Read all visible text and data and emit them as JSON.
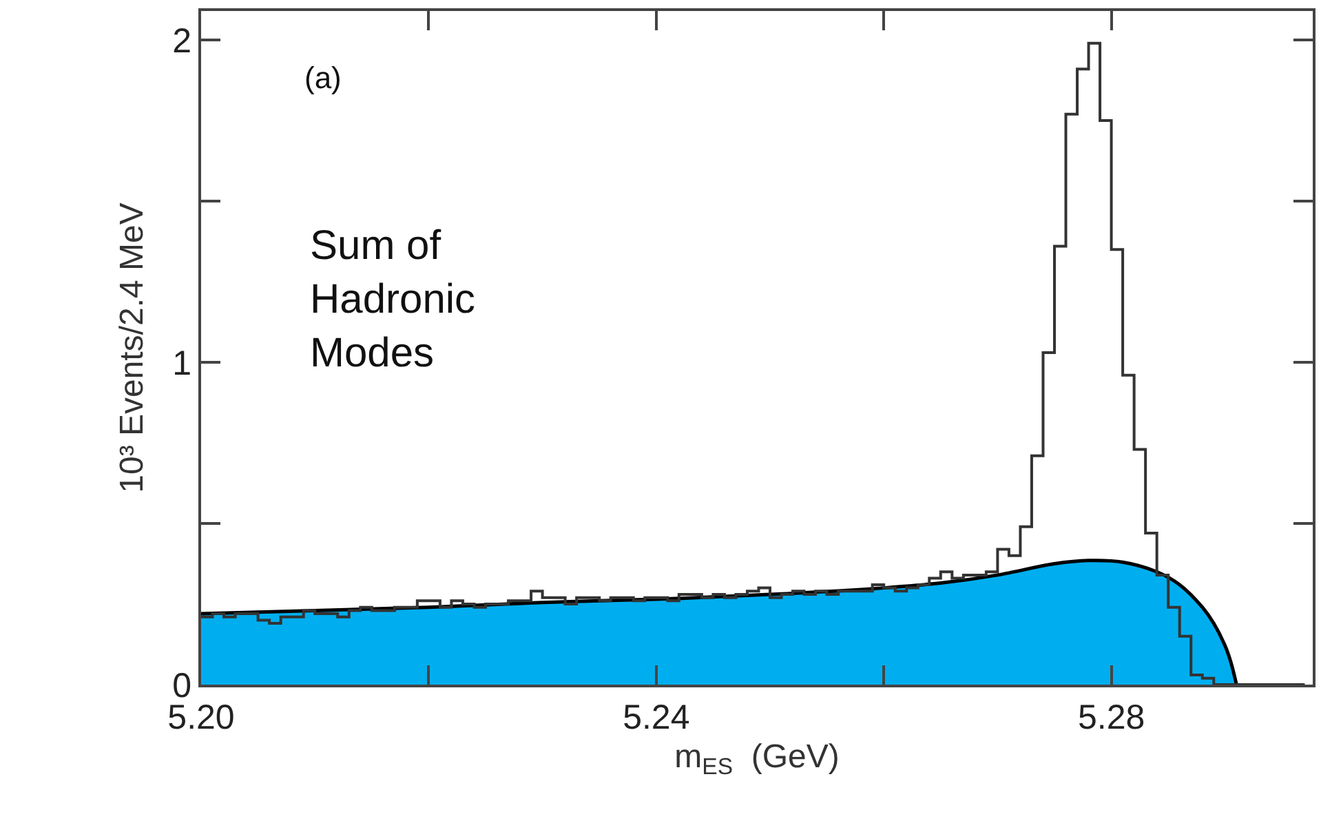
{
  "chart_data": {
    "type": "histogram",
    "xlabel": "m$_{ES}$  (GeV)",
    "ylabel": "10³ Events/2.4 MeV",
    "annotations": [
      "(a)",
      "Sum of\nHadronic\nModes"
    ],
    "xlim": [
      5.2,
      5.2977
    ],
    "xticks": [
      {
        "value": 5.2,
        "label": "5.20"
      },
      {
        "value": 5.22,
        "label": null
      },
      {
        "value": 5.24,
        "label": "5.24"
      },
      {
        "value": 5.26,
        "label": null
      },
      {
        "value": 5.28,
        "label": "5.28"
      }
    ],
    "ylim": [
      0,
      2.09
    ],
    "yticks": [
      0,
      {
        "value": 0.5,
        "label": null
      },
      1,
      {
        "value": 1.5,
        "label": null
      },
      2
    ],
    "series": [
      {
        "type": "area",
        "color": "#00aeef",
        "x": [
          5.2,
          5.21,
          5.22,
          5.23,
          5.24,
          5.25,
          5.26,
          5.265,
          5.27,
          5.275,
          5.278,
          5.281,
          5.284,
          5.286,
          5.288,
          5.289,
          5.29,
          5.2905,
          5.291
        ],
        "values": [
          0.22,
          0.23,
          0.24,
          0.255,
          0.265,
          0.28,
          0.3,
          0.315,
          0.34,
          0.375,
          0.385,
          0.38,
          0.35,
          0.31,
          0.24,
          0.19,
          0.12,
          0.07,
          0.0
        ]
      },
      {
        "color": "#333333",
        "bins": [
          5.2,
          5.201,
          5.202,
          5.203,
          5.204,
          5.205,
          5.206,
          5.207,
          5.208,
          5.209,
          5.21,
          5.211,
          5.212,
          5.213,
          5.214,
          5.215,
          5.216,
          5.217,
          5.218,
          5.219,
          5.22,
          5.221,
          5.222,
          5.223,
          5.224,
          5.225,
          5.226,
          5.227,
          5.228,
          5.229,
          5.23,
          5.231,
          5.232,
          5.233,
          5.234,
          5.235,
          5.236,
          5.237,
          5.238,
          5.239,
          5.24,
          5.241,
          5.242,
          5.243,
          5.244,
          5.245,
          5.246,
          5.247,
          5.248,
          5.249,
          5.25,
          5.251,
          5.252,
          5.253,
          5.254,
          5.255,
          5.256,
          5.257,
          5.258,
          5.259,
          5.26,
          5.261,
          5.262,
          5.263,
          5.264,
          5.265,
          5.266,
          5.267,
          5.268,
          5.269,
          5.27,
          5.271,
          5.272,
          5.273,
          5.274,
          5.275,
          5.276,
          5.277,
          5.278,
          5.279,
          5.28,
          5.281,
          5.282,
          5.283,
          5.284,
          5.285,
          5.286,
          5.287,
          5.288,
          5.289,
          5.29,
          5.291,
          5.292,
          5.293,
          5.294,
          5.295,
          5.296,
          5.297
        ],
        "values": [
          0.21,
          0.22,
          0.21,
          0.22,
          0.22,
          0.2,
          0.19,
          0.21,
          0.21,
          0.23,
          0.22,
          0.22,
          0.21,
          0.23,
          0.24,
          0.23,
          0.23,
          0.24,
          0.24,
          0.26,
          0.26,
          0.24,
          0.26,
          0.25,
          0.24,
          0.25,
          0.25,
          0.26,
          0.26,
          0.29,
          0.27,
          0.27,
          0.25,
          0.27,
          0.27,
          0.26,
          0.27,
          0.27,
          0.26,
          0.27,
          0.27,
          0.26,
          0.28,
          0.28,
          0.27,
          0.28,
          0.27,
          0.28,
          0.29,
          0.3,
          0.27,
          0.28,
          0.29,
          0.28,
          0.29,
          0.28,
          0.29,
          0.29,
          0.29,
          0.31,
          0.3,
          0.29,
          0.3,
          0.31,
          0.33,
          0.35,
          0.33,
          0.34,
          0.34,
          0.35,
          0.42,
          0.4,
          0.49,
          0.71,
          1.03,
          1.36,
          1.77,
          1.91,
          1.99,
          1.75,
          1.35,
          0.96,
          0.73,
          0.47,
          0.34,
          0.24,
          0.15,
          0.03,
          0.02,
          0,
          0,
          0,
          0,
          0,
          0,
          0,
          0
        ]
      }
    ]
  }
}
